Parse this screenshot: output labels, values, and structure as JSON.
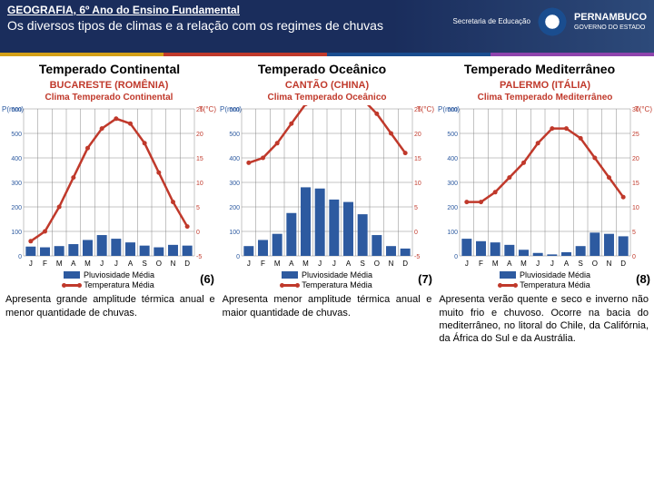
{
  "header": {
    "subject": "GEOGRAFIA, 6º Ano do Ensino Fundamental",
    "title": "Os diversos tipos de climas e a relação com os regimes de chuvas",
    "logo_small": "Secretaria de Educação",
    "logo_state": "PERNAMBUCO",
    "logo_gov": "GOVERNO DO ESTADO"
  },
  "titles": [
    "Temperado Continental",
    "Temperado Oceânico",
    "Temperado Mediterrâneo"
  ],
  "charts": [
    {
      "loc": "BUCARESTE (ROMÊNIA)",
      "sub": "Clima Temperado Continental",
      "months": [
        "J",
        "F",
        "M",
        "A",
        "M",
        "J",
        "J",
        "A",
        "S",
        "O",
        "N",
        "D"
      ],
      "p_axis": {
        "label": "P(mm)",
        "min": 0,
        "max": 600,
        "ticks": [
          0,
          100,
          200,
          300,
          400,
          500,
          600
        ]
      },
      "t_axis": {
        "label": "T(°C)",
        "min": -5,
        "max": 25,
        "ticks": [
          -5,
          0,
          5,
          10,
          15,
          20,
          25
        ]
      },
      "precip": [
        38,
        35,
        40,
        48,
        65,
        85,
        70,
        55,
        42,
        35,
        45,
        42
      ],
      "temp": [
        -2,
        0,
        5,
        11,
        17,
        21,
        23,
        22,
        18,
        12,
        6,
        1
      ],
      "bar_color": "#2d5aa0",
      "line_color": "#c0392b",
      "grid_color": "#888",
      "num": "(6)",
      "leg1": "Pluviosidade Média",
      "leg2": "Temperatura Média"
    },
    {
      "loc": "CANTÃO (CHINA)",
      "sub": "Clima Temperado Oceânico",
      "months": [
        "J",
        "F",
        "M",
        "A",
        "M",
        "J",
        "J",
        "A",
        "S",
        "O",
        "N",
        "D"
      ],
      "p_axis": {
        "label": "P(mm)",
        "min": 0,
        "max": 600,
        "ticks": [
          0,
          100,
          200,
          300,
          400,
          500,
          600
        ]
      },
      "t_axis": {
        "label": "T(°C)",
        "min": -5,
        "max": 25,
        "ticks": [
          -5,
          0,
          5,
          10,
          15,
          20,
          25
        ]
      },
      "precip": [
        40,
        65,
        90,
        175,
        280,
        275,
        230,
        220,
        170,
        85,
        40,
        30
      ],
      "temp": [
        14,
        15,
        18,
        22,
        26,
        27,
        28,
        28,
        27,
        24,
        20,
        16
      ],
      "bar_color": "#2d5aa0",
      "line_color": "#c0392b",
      "grid_color": "#888",
      "num": "(7)",
      "leg1": "Pluviosidade Média",
      "leg2": "Temperatura Média"
    },
    {
      "loc": "PALERMO (ITÁLIA)",
      "sub": "Clima Temperado Mediterrâneo",
      "months": [
        "J",
        "F",
        "M",
        "A",
        "M",
        "J",
        "J",
        "A",
        "S",
        "O",
        "N",
        "D"
      ],
      "p_axis": {
        "label": "P(mm)",
        "min": 0,
        "max": 600,
        "ticks": [
          0,
          100,
          200,
          300,
          400,
          500,
          600
        ]
      },
      "t_axis": {
        "label": "T(°C)",
        "min": 0,
        "max": 30,
        "ticks": [
          0,
          5,
          10,
          15,
          20,
          25,
          30
        ]
      },
      "precip": [
        70,
        60,
        55,
        45,
        25,
        12,
        6,
        15,
        40,
        95,
        90,
        80
      ],
      "temp": [
        11,
        11,
        13,
        16,
        19,
        23,
        26,
        26,
        24,
        20,
        16,
        12
      ],
      "bar_color": "#2d5aa0",
      "line_color": "#c0392b",
      "grid_color": "#888",
      "num": "(8)",
      "leg1": "Pluviosidade Média",
      "leg2": "Temperatura Média"
    }
  ],
  "descriptions": [
    "Apresenta grande amplitude térmica anual e menor quantidade de chuvas.",
    "Apresenta menor amplitude térmica anual e maior quantidade de chuvas.",
    "Apresenta verão quente e seco e inverno não muito frio e chuvoso. Ocorre na bacia do mediterrâneo, no litoral do Chile, da Califórnia, da África do Sul e da Austrália."
  ]
}
